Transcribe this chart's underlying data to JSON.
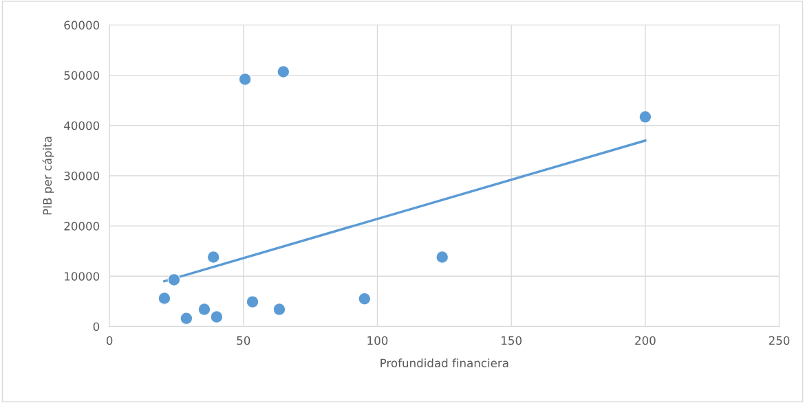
{
  "chart_data": {
    "type": "scatter",
    "xlabel": "Profundidad financiera",
    "ylabel": "PIB per cápita",
    "xlim": [
      0,
      250
    ],
    "xticks": [
      0,
      50,
      100,
      150,
      200,
      250
    ],
    "ylim": [
      0,
      60000
    ],
    "yticks": [
      0,
      10000,
      20000,
      30000,
      40000,
      50000,
      60000
    ],
    "grid": true,
    "legend": false,
    "series": [
      {
        "color": "#5b9bd5",
        "marker": "circle",
        "x": [
          20.5,
          24.1,
          28.7,
          35.4,
          38.8,
          40.0,
          50.6,
          53.4,
          63.4,
          64.9,
          95.2,
          124.2,
          200
        ],
        "values": [
          5600,
          9300,
          1600,
          3400,
          13800,
          1900,
          49200,
          4900,
          3400,
          50700,
          5500,
          13800,
          41700
        ]
      },
      {
        "type": "line",
        "color": "#5b9bd5",
        "marker": "none",
        "line_style": "solid",
        "x": [
          20.5,
          200
        ],
        "values": [
          9000,
          37000
        ]
      }
    ]
  }
}
